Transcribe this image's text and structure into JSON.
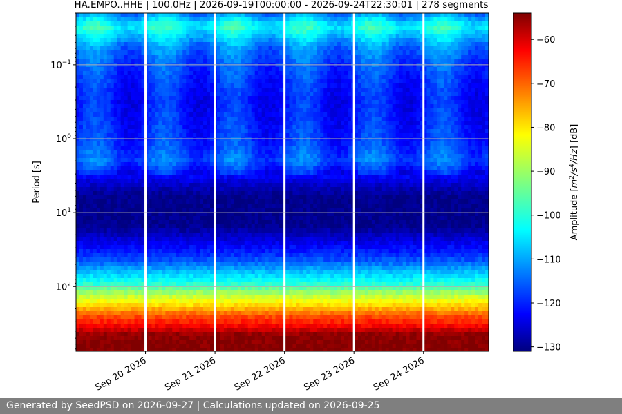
{
  "chart_data": {
    "type": "heatmap",
    "title": "HA.EMPO..HHE | 100.0Hz | 2026-09-19T00:00:00 - 2026-09-24T22:30:01 | 278 segments",
    "ylabel": "Period [s]",
    "y_scale": "log",
    "y_inverted": true,
    "ylim": [
      0.02,
      750
    ],
    "y_ticks": [
      {
        "value": 0.1,
        "base": "10",
        "exp": "−1"
      },
      {
        "value": 1,
        "base": "10",
        "exp": "0"
      },
      {
        "value": 10,
        "base": "10",
        "exp": "1"
      },
      {
        "value": 100,
        "base": "10",
        "exp": "2"
      }
    ],
    "x_range": [
      "2026-09-19T00:00:00",
      "2026-09-24T22:30:01"
    ],
    "x_ticks": [
      {
        "date": "2026-09-20",
        "label": "Sep 20 2026"
      },
      {
        "date": "2026-09-21",
        "label": "Sep 21 2026"
      },
      {
        "date": "2026-09-22",
        "label": "Sep 22 2026"
      },
      {
        "date": "2026-09-23",
        "label": "Sep 23 2026"
      },
      {
        "date": "2026-09-24",
        "label": "Sep 24 2026"
      }
    ],
    "grid": true,
    "colormap": "jet",
    "colorbar": {
      "label_parts": {
        "pre": "Amplitude [",
        "m": "m",
        "e1": "2",
        "s": "/s",
        "e2": "4",
        "hz": "/Hz",
        "post": "] [dB]"
      },
      "range": [
        -131,
        -54
      ],
      "ticks": [
        -60,
        -70,
        -80,
        -90,
        -100,
        -110,
        -120,
        -130
      ]
    },
    "amplitude_profile_db": [
      {
        "period": 0.02,
        "db": -112
      },
      {
        "period": 0.03,
        "db": -100
      },
      {
        "period": 0.06,
        "db": -112
      },
      {
        "period": 0.1,
        "db": -116
      },
      {
        "period": 0.3,
        "db": -120
      },
      {
        "period": 1,
        "db": -118
      },
      {
        "period": 2,
        "db": -114
      },
      {
        "period": 4,
        "db": -125
      },
      {
        "period": 6,
        "db": -130
      },
      {
        "period": 15,
        "db": -130
      },
      {
        "period": 25,
        "db": -123
      },
      {
        "period": 40,
        "db": -117
      },
      {
        "period": 60,
        "db": -108
      },
      {
        "period": 90,
        "db": -100
      },
      {
        "period": 130,
        "db": -88
      },
      {
        "period": 180,
        "db": -80
      },
      {
        "period": 250,
        "db": -70
      },
      {
        "period": 330,
        "db": -64
      },
      {
        "period": 450,
        "db": -55
      },
      {
        "period": 750,
        "db": -54
      }
    ]
  },
  "footer": {
    "text": "Generated by SeedPSD on 2026-09-27 | Calculations updated on 2026-09-25"
  }
}
